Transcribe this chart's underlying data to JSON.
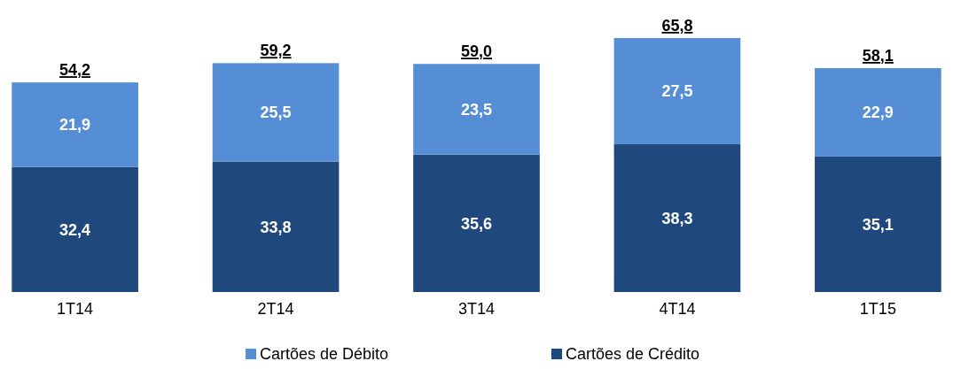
{
  "chart_data": {
    "type": "bar",
    "stacked": true,
    "categories": [
      "1T14",
      "2T14",
      "3T14",
      "4T14",
      "1T15"
    ],
    "series": [
      {
        "name": "Cartões de Crédito",
        "color": "#1f497d",
        "values": [
          32.4,
          33.8,
          35.6,
          38.3,
          35.1
        ],
        "value_labels": [
          "32,4",
          "33,8",
          "35,6",
          "38,3",
          "35,1"
        ]
      },
      {
        "name": "Cartões de Débito",
        "color": "#558ed5",
        "values": [
          21.9,
          25.5,
          23.5,
          27.5,
          22.9
        ],
        "value_labels": [
          "21,9",
          "25,5",
          "23,5",
          "27,5",
          "22,9"
        ]
      }
    ],
    "totals": [
      "54,2",
      "59,2",
      "59,0",
      "65,8",
      "58,1"
    ],
    "legend": "bottom"
  }
}
